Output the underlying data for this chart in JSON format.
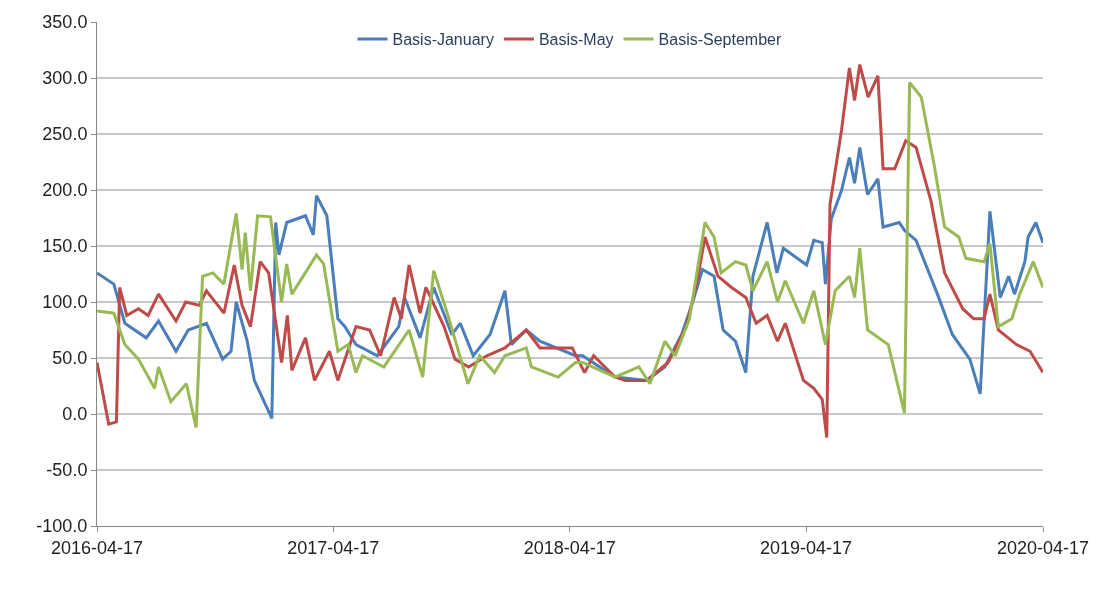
{
  "chart_data": {
    "type": "line",
    "xlim": [
      "2016-04-17",
      "2020-04-17"
    ],
    "xticks": [
      "2016-04-17",
      "2017-04-17",
      "2018-04-17",
      "2019-04-17",
      "2020-04-17"
    ],
    "ylim": [
      -100,
      350
    ],
    "yticks": [
      {
        "value": -100,
        "label": "-100.0"
      },
      {
        "value": -50,
        "label": "-50.0"
      },
      {
        "value": 0,
        "label": "0.0"
      },
      {
        "value": 50,
        "label": "50.0"
      },
      {
        "value": 100,
        "label": "100.0"
      },
      {
        "value": 150,
        "label": "150.0"
      },
      {
        "value": 200,
        "label": "200.0"
      },
      {
        "value": 250,
        "label": "250.0"
      },
      {
        "value": 300,
        "label": "300.0"
      },
      {
        "value": 350,
        "label": "350.0"
      }
    ],
    "grid": "y",
    "legend": "top",
    "marker": "none",
    "line_style": "solid",
    "series": [
      {
        "name": "Basis-January",
        "color": "#4a7ebb",
        "x": [
          "2016-04-17",
          "2016-05-13",
          "2016-05-30",
          "2016-07-02",
          "2016-07-21",
          "2016-08-17",
          "2016-09-05",
          "2016-10-03",
          "2016-10-28",
          "2016-11-10",
          "2016-11-18",
          "2016-12-05",
          "2016-12-16",
          "2017-01-12",
          "2017-01-18",
          "2017-01-23",
          "2017-02-04",
          "2017-03-05",
          "2017-03-17",
          "2017-03-22",
          "2017-04-07",
          "2017-04-24",
          "2017-05-05",
          "2017-05-22",
          "2017-06-24",
          "2017-07-27",
          "2017-08-05",
          "2017-08-29",
          "2017-09-19",
          "2017-10-17",
          "2017-10-30",
          "2017-11-19",
          "2017-12-15",
          "2018-01-07",
          "2018-01-17",
          "2018-02-09",
          "2018-03-02",
          "2018-04-26",
          "2018-05-07",
          "2018-06-26",
          "2018-08-14",
          "2018-09-11",
          "2018-10-07",
          "2018-10-24",
          "2018-11-08",
          "2018-11-26",
          "2018-12-10",
          "2018-12-29",
          "2019-01-14",
          "2019-01-25",
          "2019-02-16",
          "2019-03-03",
          "2019-03-13",
          "2019-04-18",
          "2019-04-29",
          "2019-05-12",
          "2019-05-17",
          "2019-05-26",
          "2019-06-11",
          "2019-06-23",
          "2019-07-01",
          "2019-07-09",
          "2019-07-21",
          "2019-08-06",
          "2019-08-14",
          "2019-09-08",
          "2019-09-16",
          "2019-10-04",
          "2019-11-06",
          "2019-11-29",
          "2019-12-26",
          "2020-01-11",
          "2020-01-26",
          "2020-02-11",
          "2020-02-24",
          "2020-03-04",
          "2020-03-20",
          "2020-03-25",
          "2020-04-06",
          "2020-04-17"
        ],
        "values": [
          126,
          116,
          81,
          68,
          83,
          56,
          75,
          81,
          49,
          56,
          100,
          65,
          30,
          -4,
          171,
          142,
          171,
          177,
          160,
          195,
          177,
          85,
          78,
          62,
          52,
          78,
          104,
          68,
          113,
          71,
          81,
          52,
          71,
          110,
          62,
          75,
          65,
          52,
          52,
          33,
          30,
          42,
          71,
          100,
          129,
          123,
          75,
          65,
          37,
          123,
          171,
          126,
          148,
          133,
          155,
          153,
          116,
          174,
          200,
          229,
          206,
          238,
          196,
          210,
          167,
          171,
          164,
          155,
          107,
          71,
          49,
          18,
          181,
          104,
          123,
          107,
          136,
          158,
          171,
          153
        ]
      },
      {
        "name": "Basis-May",
        "color": "#be4b48",
        "x": [
          "2016-04-17",
          "2016-05-05",
          "2016-05-17",
          "2016-05-22",
          "2016-06-02",
          "2016-06-20",
          "2016-07-05",
          "2016-07-21",
          "2016-08-17",
          "2016-09-01",
          "2016-09-22",
          "2016-10-03",
          "2016-10-30",
          "2016-11-15",
          "2016-11-27",
          "2016-12-10",
          "2016-12-25",
          "2017-01-07",
          "2017-01-27",
          "2017-02-05",
          "2017-02-12",
          "2017-03-05",
          "2017-03-19",
          "2017-04-11",
          "2017-04-24",
          "2017-05-22",
          "2017-06-12",
          "2017-06-29",
          "2017-07-20",
          "2017-07-31",
          "2017-08-12",
          "2017-08-29",
          "2017-09-07",
          "2017-10-05",
          "2017-10-22",
          "2017-11-12",
          "2017-12-10",
          "2018-01-07",
          "2018-02-09",
          "2018-03-02",
          "2018-03-30",
          "2018-04-21",
          "2018-05-10",
          "2018-05-24",
          "2018-06-26",
          "2018-07-12",
          "2018-08-14",
          "2018-09-16",
          "2018-10-14",
          "2018-10-30",
          "2018-11-12",
          "2018-12-02",
          "2018-12-23",
          "2019-01-14",
          "2019-01-30",
          "2019-02-16",
          "2019-03-04",
          "2019-03-16",
          "2019-04-13",
          "2019-04-29",
          "2019-05-12",
          "2019-05-19",
          "2019-05-24",
          "2019-06-11",
          "2019-06-23",
          "2019-07-01",
          "2019-07-09",
          "2019-07-22",
          "2019-08-06",
          "2019-08-14",
          "2019-09-01",
          "2019-09-18",
          "2019-10-04",
          "2019-10-27",
          "2019-11-17",
          "2019-12-15",
          "2020-01-01",
          "2020-01-17",
          "2020-01-26",
          "2020-02-08",
          "2020-03-07",
          "2020-03-28",
          "2020-04-17"
        ],
        "values": [
          46,
          -9,
          -7,
          113,
          88,
          94,
          88,
          107,
          83,
          100,
          97,
          110,
          90,
          133,
          97,
          78,
          136,
          126,
          46,
          88,
          39,
          68,
          30,
          56,
          30,
          78,
          75,
          52,
          104,
          85,
          133,
          90,
          113,
          78,
          49,
          42,
          52,
          59,
          75,
          59,
          59,
          59,
          37,
          52,
          33,
          30,
          30,
          46,
          78,
          116,
          158,
          123,
          113,
          104,
          81,
          88,
          65,
          81,
          30,
          23,
          13,
          -21,
          187,
          254,
          309,
          280,
          312,
          283,
          302,
          219,
          219,
          244,
          238,
          190,
          126,
          94,
          85,
          85,
          107,
          75,
          62,
          56,
          37
        ]
      },
      {
        "name": "Basis-September",
        "color": "#98b954",
        "x": [
          "2016-04-17",
          "2016-05-13",
          "2016-05-30",
          "2016-06-20",
          "2016-07-15",
          "2016-07-21",
          "2016-08-09",
          "2016-09-02",
          "2016-09-17",
          "2016-09-27",
          "2016-10-13",
          "2016-10-30",
          "2016-11-18",
          "2016-11-27",
          "2016-12-02",
          "2016-12-10",
          "2016-12-21",
          "2017-01-10",
          "2017-01-27",
          "2017-02-04",
          "2017-02-12",
          "2017-03-22",
          "2017-04-02",
          "2017-04-24",
          "2017-05-10",
          "2017-05-22",
          "2017-06-01",
          "2017-07-04",
          "2017-08-12",
          "2017-09-02",
          "2017-09-19",
          "2017-10-10",
          "2017-11-11",
          "2017-11-29",
          "2017-12-22",
          "2018-01-07",
          "2018-02-09",
          "2018-02-17",
          "2018-03-30",
          "2018-04-26",
          "2018-05-07",
          "2018-06-26",
          "2018-08-02",
          "2018-08-19",
          "2018-09-11",
          "2018-09-27",
          "2018-10-19",
          "2018-11-12",
          "2018-11-26",
          "2018-12-07",
          "2018-12-29",
          "2019-01-14",
          "2019-01-25",
          "2019-02-16",
          "2019-03-04",
          "2019-03-16",
          "2019-04-13",
          "2019-04-29",
          "2019-05-17",
          "2019-06-01",
          "2019-06-23",
          "2019-07-01",
          "2019-07-09",
          "2019-07-21",
          "2019-08-22",
          "2019-09-16",
          "2019-09-24",
          "2019-10-12",
          "2019-11-01",
          "2019-11-17",
          "2019-12-09",
          "2019-12-20",
          "2020-01-17",
          "2020-01-26",
          "2020-02-08",
          "2020-02-29",
          "2020-03-12",
          "2020-04-02",
          "2020-04-17"
        ],
        "values": [
          92,
          90,
          62,
          49,
          23,
          42,
          11,
          27,
          -12,
          123,
          126,
          116,
          179,
          129,
          162,
          110,
          177,
          176,
          100,
          134,
          107,
          142,
          134,
          56,
          62,
          37,
          52,
          42,
          75,
          33,
          128,
          90,
          27,
          52,
          37,
          52,
          59,
          42,
          33,
          46,
          46,
          33,
          42,
          27,
          65,
          52,
          85,
          171,
          158,
          126,
          136,
          133,
          110,
          136,
          100,
          119,
          81,
          110,
          62,
          110,
          123,
          104,
          148,
          75,
          62,
          1,
          296,
          283,
          222,
          167,
          158,
          139,
          136,
          152,
          78,
          85,
          107,
          136,
          113
        ]
      }
    ]
  }
}
